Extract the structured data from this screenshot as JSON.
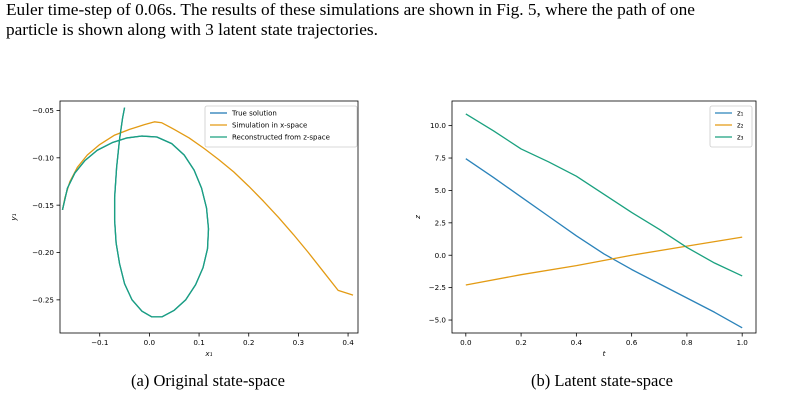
{
  "body_text": {
    "line1_before": "Euler time-step of ",
    "line1_math": "0.06",
    "line1_after": "s. The results of these simulations are shown in Fig. 5, where the path of one",
    "line2": "particle is shown along with 3 latent state trajectories."
  },
  "captions": {
    "left": "(a) Original state-space",
    "right": "(b) Latent state-space"
  },
  "colors": {
    "true_solution": "#1f77b4",
    "simulation": "#e39b14",
    "reconstructed": "#1aa17f",
    "z1": "#2b83ba",
    "z2": "#e39b14",
    "z3": "#1aa17f"
  },
  "chart_data": [
    {
      "type": "line",
      "xlabel": "x₁",
      "ylabel": "y₁",
      "xlim": [
        -0.18,
        0.42
      ],
      "ylim": [
        -0.285,
        -0.04
      ],
      "xticks": [
        "−0.1",
        "0.0",
        "0.1",
        "0.2",
        "0.3",
        "0.4"
      ],
      "xtick_values": [
        -0.1,
        0.0,
        0.1,
        0.2,
        0.3,
        0.4
      ],
      "yticks": [
        "−0.05",
        "−0.10",
        "−0.15",
        "−0.20",
        "−0.25"
      ],
      "ytick_values": [
        -0.05,
        -0.1,
        -0.15,
        -0.2,
        -0.25
      ],
      "legend_position": "top-right",
      "legend": [
        "True solution",
        "Simulation in x-space",
        "Reconstructed from z-space"
      ],
      "series": [
        {
          "name": "Simulation in x-space",
          "x": [
            -0.175,
            -0.17,
            -0.16,
            -0.145,
            -0.125,
            -0.1,
            -0.07,
            -0.04,
            -0.01,
            0.01,
            0.025,
            0.05,
            0.08,
            0.11,
            0.14,
            0.17,
            0.2,
            0.23,
            0.26,
            0.29,
            0.32,
            0.35,
            0.38,
            0.41
          ],
          "y": [
            -0.155,
            -0.142,
            -0.125,
            -0.11,
            -0.097,
            -0.086,
            -0.076,
            -0.07,
            -0.065,
            -0.062,
            -0.063,
            -0.07,
            -0.079,
            -0.09,
            -0.102,
            -0.115,
            -0.13,
            -0.146,
            -0.163,
            -0.181,
            -0.2,
            -0.22,
            -0.24,
            -0.245
          ]
        },
        {
          "name": "True solution",
          "x": [
            -0.175,
            -0.165,
            -0.15,
            -0.13,
            -0.105,
            -0.075,
            -0.045,
            -0.015,
            0.015,
            0.045,
            0.07,
            0.09,
            0.105,
            0.115,
            0.119,
            0.117,
            0.108,
            0.093,
            0.073,
            0.05,
            0.025,
            0.005,
            -0.015,
            -0.035,
            -0.05,
            -0.06,
            -0.067,
            -0.07,
            -0.07,
            -0.066,
            -0.06,
            -0.054,
            -0.05
          ],
          "y": [
            -0.155,
            -0.132,
            -0.116,
            -0.103,
            -0.092,
            -0.084,
            -0.079,
            -0.077,
            -0.078,
            -0.085,
            -0.097,
            -0.113,
            -0.132,
            -0.153,
            -0.175,
            -0.196,
            -0.216,
            -0.234,
            -0.25,
            -0.261,
            -0.268,
            -0.268,
            -0.262,
            -0.25,
            -0.233,
            -0.212,
            -0.19,
            -0.166,
            -0.142,
            -0.11,
            -0.08,
            -0.058,
            -0.047
          ]
        },
        {
          "name": "Reconstructed from z-space",
          "x": [
            -0.175,
            -0.165,
            -0.15,
            -0.13,
            -0.105,
            -0.075,
            -0.045,
            -0.015,
            0.015,
            0.045,
            0.07,
            0.09,
            0.105,
            0.115,
            0.119,
            0.117,
            0.108,
            0.093,
            0.073,
            0.05,
            0.025,
            0.005,
            -0.015,
            -0.035,
            -0.05,
            -0.06,
            -0.067,
            -0.07,
            -0.07,
            -0.066,
            -0.06,
            -0.054,
            -0.05
          ],
          "y": [
            -0.155,
            -0.132,
            -0.116,
            -0.103,
            -0.092,
            -0.084,
            -0.079,
            -0.077,
            -0.078,
            -0.085,
            -0.097,
            -0.113,
            -0.132,
            -0.153,
            -0.175,
            -0.196,
            -0.216,
            -0.234,
            -0.25,
            -0.261,
            -0.268,
            -0.268,
            -0.262,
            -0.25,
            -0.233,
            -0.212,
            -0.19,
            -0.166,
            -0.142,
            -0.11,
            -0.08,
            -0.058,
            -0.047
          ]
        }
      ]
    },
    {
      "type": "line",
      "xlabel": "t",
      "ylabel": "z",
      "xlim": [
        -0.05,
        1.05
      ],
      "ylim": [
        -6.0,
        11.9
      ],
      "xticks": [
        "0.0",
        "0.2",
        "0.4",
        "0.6",
        "0.8",
        "1.0"
      ],
      "xtick_values": [
        0.0,
        0.2,
        0.4,
        0.6,
        0.8,
        1.0
      ],
      "yticks": [
        "10.0",
        "7.5",
        "5.0",
        "2.5",
        "0.0",
        "−2.5",
        "−5.0"
      ],
      "ytick_values": [
        10.0,
        7.5,
        5.0,
        2.5,
        0.0,
        -2.5,
        -5.0
      ],
      "legend_position": "top-right",
      "legend": [
        "z₁",
        "z₂",
        "z₃"
      ],
      "series": [
        {
          "name": "z₁",
          "x": [
            0.0,
            0.1,
            0.2,
            0.3,
            0.4,
            0.5,
            0.6,
            0.7,
            0.8,
            0.9,
            1.0
          ],
          "y": [
            7.45,
            6.0,
            4.5,
            3.0,
            1.5,
            0.1,
            -1.1,
            -2.2,
            -3.3,
            -4.4,
            -5.6
          ]
        },
        {
          "name": "z₂",
          "x": [
            0.0,
            0.2,
            0.4,
            0.6,
            0.8,
            1.0
          ],
          "y": [
            -2.3,
            -1.5,
            -0.8,
            0.0,
            0.7,
            1.4
          ]
        },
        {
          "name": "z₃",
          "x": [
            0.0,
            0.1,
            0.2,
            0.3,
            0.4,
            0.5,
            0.6,
            0.7,
            0.8,
            0.9,
            1.0
          ],
          "y": [
            10.9,
            9.6,
            8.2,
            7.2,
            6.1,
            4.7,
            3.3,
            2.0,
            0.6,
            -0.6,
            -1.6
          ]
        }
      ]
    }
  ]
}
